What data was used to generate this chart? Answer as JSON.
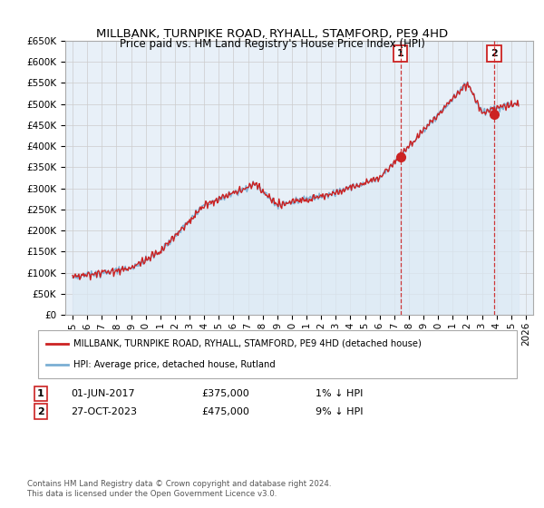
{
  "title": "MILLBANK, TURNPIKE ROAD, RYHALL, STAMFORD, PE9 4HD",
  "subtitle": "Price paid vs. HM Land Registry's House Price Index (HPI)",
  "ylabel_ticks": [
    "£0",
    "£50K",
    "£100K",
    "£150K",
    "£200K",
    "£250K",
    "£300K",
    "£350K",
    "£400K",
    "£450K",
    "£500K",
    "£550K",
    "£600K",
    "£650K"
  ],
  "ytick_values": [
    0,
    50000,
    100000,
    150000,
    200000,
    250000,
    300000,
    350000,
    400000,
    450000,
    500000,
    550000,
    600000,
    650000
  ],
  "ylim": [
    0,
    650000
  ],
  "xlim_start": 1994.5,
  "xlim_end": 2026.5,
  "hpi_color": "#7bafd4",
  "price_color": "#cc2222",
  "hpi_fill_color": "#dce9f5",
  "marker1_date": 2017.42,
  "marker1_price": 375000,
  "marker1_label": "1",
  "marker2_date": 2023.82,
  "marker2_price": 475000,
  "marker2_label": "2",
  "legend_line1": "MILLBANK, TURNPIKE ROAD, RYHALL, STAMFORD, PE9 4HD (detached house)",
  "legend_line2": "HPI: Average price, detached house, Rutland",
  "ann1_num": "1",
  "ann1_date": "01-JUN-2017",
  "ann1_price": "£375,000",
  "ann1_hpi": "1% ↓ HPI",
  "ann2_num": "2",
  "ann2_date": "27-OCT-2023",
  "ann2_price": "£475,000",
  "ann2_hpi": "9% ↓ HPI",
  "footer": "Contains HM Land Registry data © Crown copyright and database right 2024.\nThis data is licensed under the Open Government Licence v3.0.",
  "background_color": "#ffffff",
  "grid_color": "#cccccc",
  "chart_bg": "#e8f0f8"
}
